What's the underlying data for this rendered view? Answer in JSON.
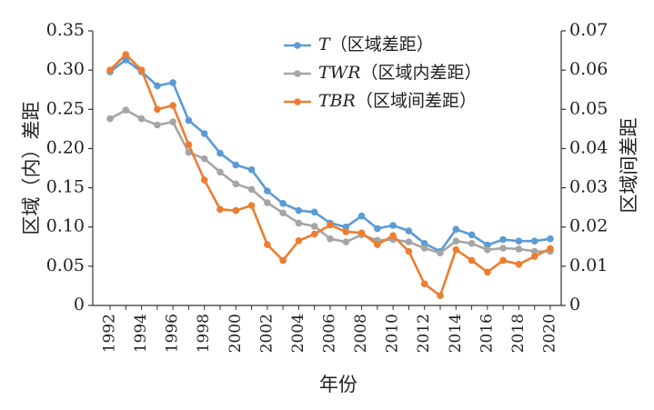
{
  "chart_data": {
    "type": "line",
    "x": [
      1992,
      1993,
      1994,
      1995,
      1996,
      1997,
      1998,
      1999,
      2000,
      2001,
      2002,
      2003,
      2004,
      2005,
      2006,
      2007,
      2008,
      2009,
      2010,
      2011,
      2012,
      2013,
      2014,
      2015,
      2016,
      2017,
      2018,
      2019,
      2020
    ],
    "x_ticks": [
      "1992",
      "1994",
      "1996",
      "1998",
      "2000",
      "2002",
      "2004",
      "2006",
      "2008",
      "2010",
      "2012",
      "2014",
      "2016",
      "2018",
      "2020"
    ],
    "xlabel": "年份",
    "ylabel_left": "区域（内）差距",
    "ylabel_right": "区域间差距",
    "ylim_left": [
      0,
      0.35
    ],
    "ylim_right": [
      0,
      0.07
    ],
    "yticks_left": [
      "0",
      "0.05",
      "0.10",
      "0.15",
      "0.20",
      "0.25",
      "0.30",
      "0.35"
    ],
    "yticks_right": [
      "0",
      "0.01",
      "0.02",
      "0.03",
      "0.04",
      "0.05",
      "0.06",
      "0.07"
    ],
    "grid": false,
    "legend_position": "top-right",
    "series": [
      {
        "name": "T（区域差距）",
        "name_italic": "T",
        "name_rest": "（区域差距）",
        "axis": "left",
        "color": "#5b9bd5",
        "values": [
          0.298,
          0.313,
          0.298,
          0.28,
          0.284,
          0.236,
          0.219,
          0.194,
          0.179,
          0.173,
          0.146,
          0.13,
          0.121,
          0.119,
          0.105,
          0.1,
          0.114,
          0.098,
          0.102,
          0.095,
          0.079,
          0.069,
          0.097,
          0.09,
          0.077,
          0.084,
          0.082,
          0.082,
          0.085
        ]
      },
      {
        "name": "TWR（区域内差距）",
        "name_italic": "TWR",
        "name_rest": "（区域内差距）",
        "axis": "left",
        "color": "#a5a5a5",
        "values": [
          0.238,
          0.249,
          0.238,
          0.23,
          0.234,
          0.195,
          0.187,
          0.17,
          0.155,
          0.148,
          0.131,
          0.118,
          0.105,
          0.101,
          0.085,
          0.081,
          0.09,
          0.083,
          0.084,
          0.081,
          0.073,
          0.067,
          0.082,
          0.079,
          0.071,
          0.073,
          0.072,
          0.069,
          0.069
        ]
      },
      {
        "name": "TBR（区域间差距）",
        "name_italic": "TBR",
        "name_rest": "（区域间差距）",
        "axis": "right",
        "color": "#ed7d31",
        "values": [
          0.06,
          0.064,
          0.06,
          0.05,
          0.051,
          0.041,
          0.032,
          0.0245,
          0.0242,
          0.0255,
          0.0155,
          0.0115,
          0.0165,
          0.0182,
          0.0205,
          0.0188,
          0.0185,
          0.0155,
          0.0178,
          0.0138,
          0.0055,
          0.0025,
          0.0142,
          0.0115,
          0.0085,
          0.0115,
          0.0105,
          0.0125,
          0.0145
        ]
      }
    ]
  }
}
